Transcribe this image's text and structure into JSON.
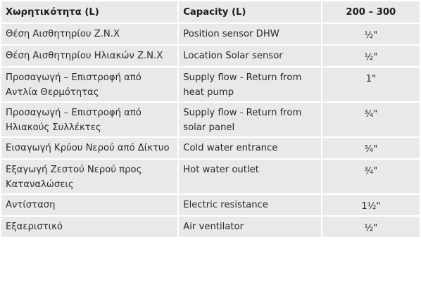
{
  "table": {
    "headers": {
      "greek": "Χωρητικότητα (L)",
      "english": "Capacity (L)",
      "range": "200 – 300"
    },
    "rows": [
      {
        "greek": "Θέση Αισθητηρίου Ζ.Ν.Χ",
        "english": "Position sensor DHW",
        "value": "½\""
      },
      {
        "greek": "Θέση Αισθητηρίου Ηλιακών Ζ.Ν.Χ",
        "english": "Location Solar sensor",
        "value": "½\""
      },
      {
        "greek": "Προσαγωγή – Επιστροφή από Αντλία Θερμότητας",
        "english": "Supply flow - Return from heat pump",
        "value": "1\""
      },
      {
        "greek": "Προσαγωγή – Επιστροφή από Ηλιακούς Συλλέκτες",
        "english": "Supply flow - Return from solar panel",
        "value": "¾\""
      },
      {
        "greek": "Εισαγωγή Κρύου Νερού από Δίκτυο",
        "english": "Cold water entrance",
        "value": "¾\""
      },
      {
        "greek": "Εξαγωγή Ζεστού Νερού προς Καταναλώσεις",
        "english": "Hot water outlet",
        "value": "¾\""
      },
      {
        "greek": "Αντίσταση",
        "english": "Electric resistance",
        "value": "1½\""
      },
      {
        "greek": "Εξαεριστικό",
        "english": "Air ventilator",
        "value": "½\""
      }
    ]
  }
}
